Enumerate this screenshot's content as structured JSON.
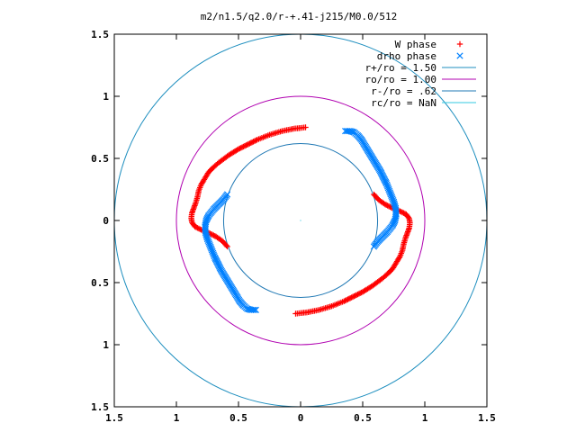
{
  "chart_data": {
    "type": "scatter",
    "title": "m2/n1.5/q2.0/r-+.41-j215/M0.0/512",
    "xlabel": "",
    "ylabel": "",
    "xlim": [
      -1.5,
      1.5
    ],
    "ylim": [
      -1.5,
      1.5
    ],
    "x_ticks": [
      -1.5,
      -1,
      -0.5,
      0,
      0.5,
      1,
      1.5
    ],
    "x_tick_labels": [
      "1.5",
      "1",
      "0.5",
      "0",
      "0.5",
      "1",
      "1.5"
    ],
    "y_ticks": [
      1.5,
      1,
      0.5,
      0,
      -0.5,
      -1,
      -1.5
    ],
    "y_tick_labels": [
      "1.5",
      "1",
      "0.5",
      "0",
      "0.5",
      "1",
      "1.5"
    ],
    "grid": false,
    "legend_position": "top-right",
    "series": [
      {
        "name": "W phase",
        "marker": "plus",
        "color": "#ff0000",
        "arms": [
          [
            [
              0.59,
              0.21
            ],
            [
              0.63,
              0.165
            ],
            [
              0.68,
              0.13
            ],
            [
              0.74,
              0.1
            ],
            [
              0.8,
              0.075
            ],
            [
              0.85,
              0.05
            ],
            [
              0.875,
              0.015
            ],
            [
              0.88,
              -0.02
            ],
            [
              0.875,
              -0.06
            ],
            [
              0.86,
              -0.1
            ],
            [
              0.845,
              -0.14
            ],
            [
              0.83,
              -0.19
            ],
            [
              0.82,
              -0.24
            ],
            [
              0.8,
              -0.29
            ],
            [
              0.77,
              -0.34
            ],
            [
              0.74,
              -0.39
            ],
            [
              0.7,
              -0.43
            ],
            [
              0.66,
              -0.465
            ],
            [
              0.62,
              -0.495
            ],
            [
              0.58,
              -0.525
            ],
            [
              0.54,
              -0.55
            ],
            [
              0.5,
              -0.575
            ],
            [
              0.45,
              -0.6
            ],
            [
              0.4,
              -0.625
            ],
            [
              0.35,
              -0.65
            ],
            [
              0.3,
              -0.67
            ],
            [
              0.25,
              -0.69
            ],
            [
              0.2,
              -0.705
            ],
            [
              0.15,
              -0.72
            ],
            [
              0.1,
              -0.73
            ],
            [
              0.05,
              -0.74
            ],
            [
              0.0,
              -0.745
            ],
            [
              -0.04,
              -0.75
            ]
          ],
          [
            [
              -0.59,
              -0.21
            ],
            [
              -0.63,
              -0.165
            ],
            [
              -0.68,
              -0.13
            ],
            [
              -0.74,
              -0.1
            ],
            [
              -0.8,
              -0.075
            ],
            [
              -0.85,
              -0.05
            ],
            [
              -0.875,
              -0.015
            ],
            [
              -0.88,
              0.02
            ],
            [
              -0.875,
              0.06
            ],
            [
              -0.86,
              0.1
            ],
            [
              -0.845,
              0.14
            ],
            [
              -0.83,
              0.19
            ],
            [
              -0.82,
              0.24
            ],
            [
              -0.8,
              0.29
            ],
            [
              -0.77,
              0.34
            ],
            [
              -0.74,
              0.39
            ],
            [
              -0.7,
              0.43
            ],
            [
              -0.66,
              0.465
            ],
            [
              -0.62,
              0.495
            ],
            [
              -0.58,
              0.525
            ],
            [
              -0.54,
              0.55
            ],
            [
              -0.5,
              0.575
            ],
            [
              -0.45,
              0.6
            ],
            [
              -0.4,
              0.625
            ],
            [
              -0.35,
              0.65
            ],
            [
              -0.3,
              0.67
            ],
            [
              -0.25,
              0.69
            ],
            [
              -0.2,
              0.705
            ],
            [
              -0.15,
              0.72
            ],
            [
              -0.1,
              0.73
            ],
            [
              -0.05,
              0.74
            ],
            [
              0.0,
              0.745
            ],
            [
              0.04,
              0.75
            ]
          ]
        ]
      },
      {
        "name": "drho phase",
        "marker": "cross",
        "color": "#0080ff",
        "arms": [
          [
            [
              0.59,
              -0.21
            ],
            [
              0.62,
              -0.17
            ],
            [
              0.66,
              -0.13
            ],
            [
              0.7,
              -0.09
            ],
            [
              0.74,
              -0.04
            ],
            [
              0.76,
              0.0
            ],
            [
              0.77,
              0.05
            ],
            [
              0.765,
              0.1
            ],
            [
              0.75,
              0.15
            ],
            [
              0.73,
              0.2
            ],
            [
              0.71,
              0.25
            ],
            [
              0.69,
              0.3
            ],
            [
              0.665,
              0.35
            ],
            [
              0.64,
              0.4
            ],
            [
              0.61,
              0.45
            ],
            [
              0.58,
              0.5
            ],
            [
              0.55,
              0.55
            ],
            [
              0.52,
              0.6
            ],
            [
              0.49,
              0.65
            ],
            [
              0.46,
              0.685
            ],
            [
              0.43,
              0.71
            ],
            [
              0.4,
              0.72
            ],
            [
              0.36,
              0.72
            ]
          ],
          [
            [
              -0.59,
              0.21
            ],
            [
              -0.62,
              0.17
            ],
            [
              -0.66,
              0.13
            ],
            [
              -0.7,
              0.09
            ],
            [
              -0.74,
              0.04
            ],
            [
              -0.76,
              0.0
            ],
            [
              -0.77,
              -0.05
            ],
            [
              -0.765,
              -0.1
            ],
            [
              -0.75,
              -0.15
            ],
            [
              -0.73,
              -0.2
            ],
            [
              -0.71,
              -0.25
            ],
            [
              -0.69,
              -0.3
            ],
            [
              -0.665,
              -0.35
            ],
            [
              -0.64,
              -0.4
            ],
            [
              -0.61,
              -0.45
            ],
            [
              -0.58,
              -0.5
            ],
            [
              -0.55,
              -0.55
            ],
            [
              -0.52,
              -0.6
            ],
            [
              -0.49,
              -0.65
            ],
            [
              -0.46,
              -0.685
            ],
            [
              -0.43,
              -0.71
            ],
            [
              -0.4,
              -0.72
            ],
            [
              -0.36,
              -0.72
            ]
          ]
        ]
      },
      {
        "name": "r+/ro = 1.50",
        "type": "circle",
        "radius": 1.5,
        "color": "#1f8fbf"
      },
      {
        "name": "ro/ro = 1.00",
        "type": "circle",
        "radius": 1.0,
        "color": "#b000b0"
      },
      {
        "name": "r-/ro = .62",
        "type": "circle",
        "radius": 0.62,
        "color": "#1f78b4"
      },
      {
        "name": "rc/ro = NaN",
        "type": "circle",
        "radius": null,
        "color": "#33c8e0"
      }
    ]
  }
}
